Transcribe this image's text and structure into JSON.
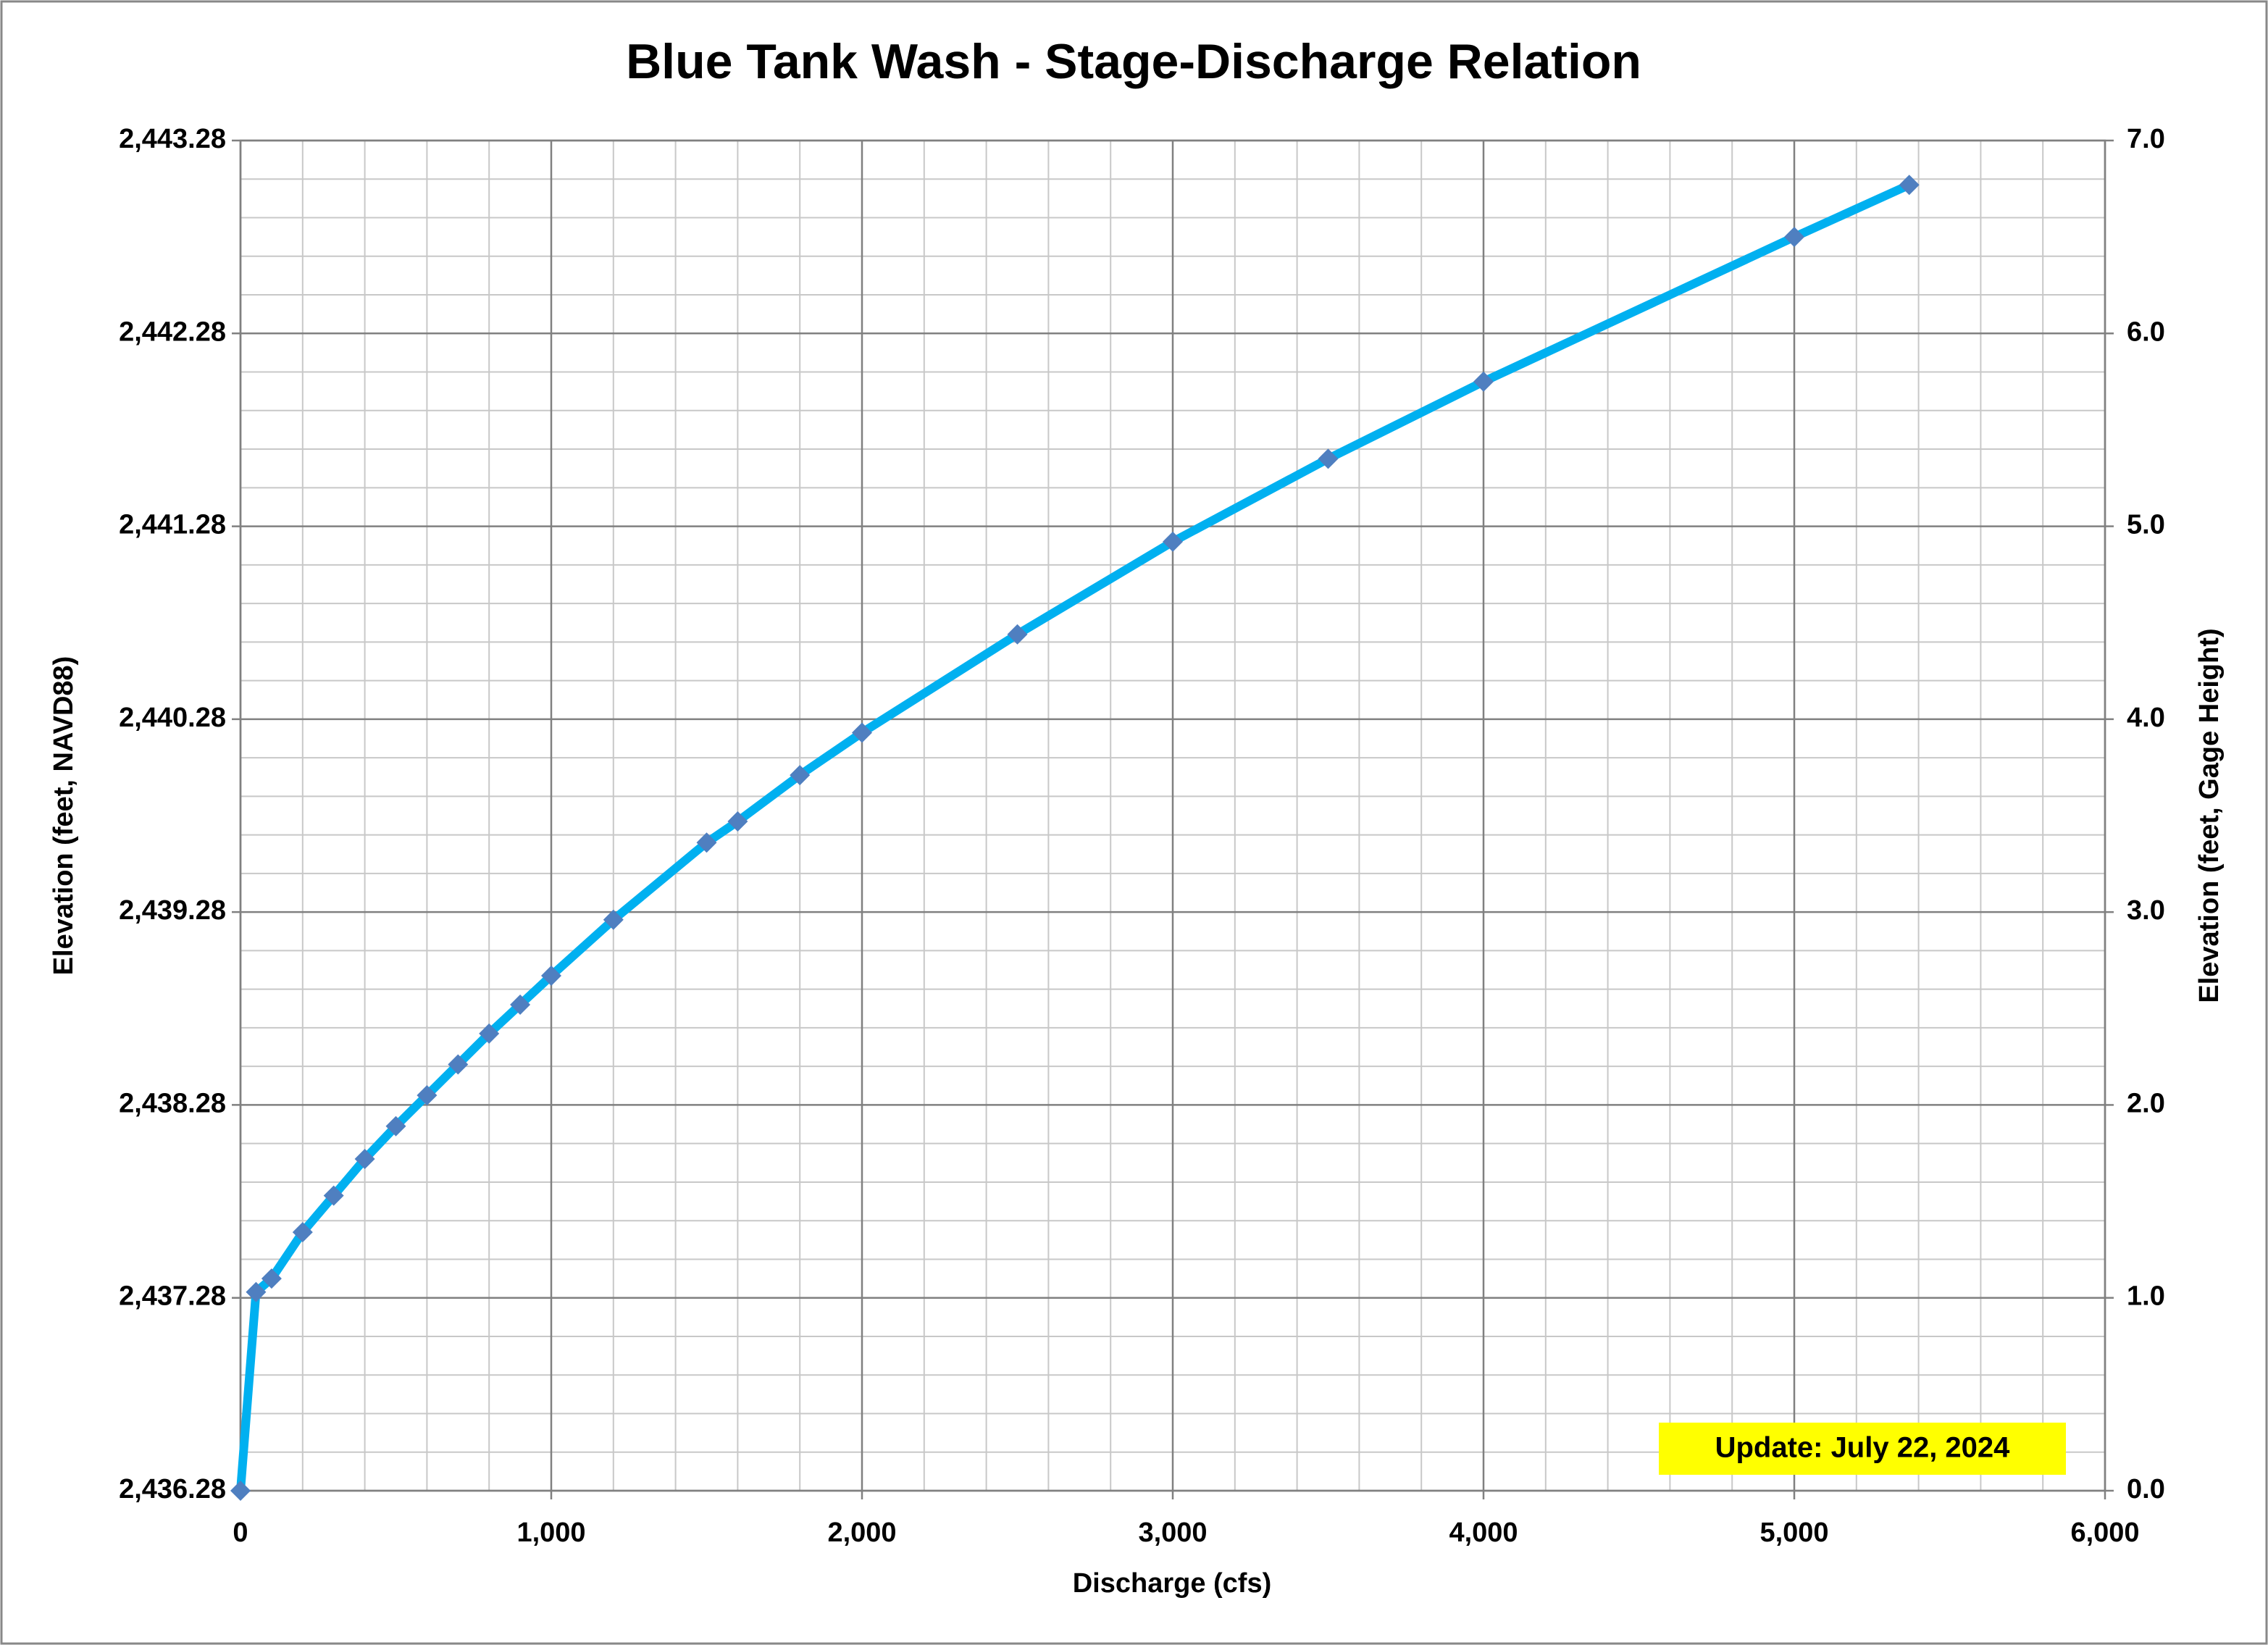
{
  "chart_data": {
    "type": "line",
    "title": "Blue Tank Wash - Stage-Discharge Relation",
    "x_label": "Discharge (cfs)",
    "y_label": "Elevation (feet, NAVD88)",
    "y2_label": "Elevation (feet, Gage Height)",
    "annotation": "Update: July 22, 2024",
    "x": [
      0,
      50,
      100,
      200,
      300,
      400,
      500,
      600,
      700,
      800,
      900,
      1000,
      1200,
      1500,
      1600,
      1800,
      2000,
      2500,
      3000,
      3500,
      4000,
      5000,
      5370
    ],
    "series": [
      {
        "name": "Stage-Discharge",
        "color": "#00b0f0",
        "marker_color": "#4f7fc0",
        "axis": "y2",
        "values": [
          0,
          1.03,
          1.1,
          1.34,
          1.53,
          1.72,
          1.89,
          2.05,
          2.21,
          2.37,
          2.52,
          2.67,
          2.96,
          3.36,
          3.47,
          3.71,
          3.93,
          4.44,
          4.92,
          5.35,
          5.75,
          6.5,
          6.77
        ]
      }
    ],
    "xlim": [
      0,
      6000
    ],
    "xticks": [
      0,
      {
        "value": 1000,
        "label": "1,000"
      },
      {
        "value": 2000,
        "label": "2,000"
      },
      {
        "value": 3000,
        "label": "3,000"
      },
      {
        "value": 4000,
        "label": "4,000"
      },
      {
        "value": 5000,
        "label": "5,000"
      },
      {
        "value": 6000,
        "label": "6,000"
      }
    ],
    "ylim": [
      2436.28,
      2443.28
    ],
    "yticks": [
      {
        "value": 2436.28,
        "label": "2,436.28"
      },
      {
        "value": 2437.28,
        "label": "2,437.28"
      },
      {
        "value": 2438.28,
        "label": "2,438.28"
      },
      {
        "value": 2439.28,
        "label": "2,439.28"
      },
      {
        "value": 2440.28,
        "label": "2,440.28"
      },
      {
        "value": 2441.28,
        "label": "2,441.28"
      },
      {
        "value": 2442.28,
        "label": "2,442.28"
      },
      {
        "value": 2443.28,
        "label": "2,443.28"
      }
    ],
    "y2lim": [
      0,
      7
    ],
    "y2ticks": [
      {
        "value": 0,
        "label": "0.0"
      },
      {
        "value": 1,
        "label": "1.0"
      },
      {
        "value": 2,
        "label": "2.0"
      },
      {
        "value": 3,
        "label": "3.0"
      },
      {
        "value": 4,
        "label": "4.0"
      },
      {
        "value": 5,
        "label": "5.0"
      },
      {
        "value": 6,
        "label": "6.0"
      },
      {
        "value": 7,
        "label": "7.0"
      }
    ],
    "grid": true,
    "minor_grid": true
  }
}
